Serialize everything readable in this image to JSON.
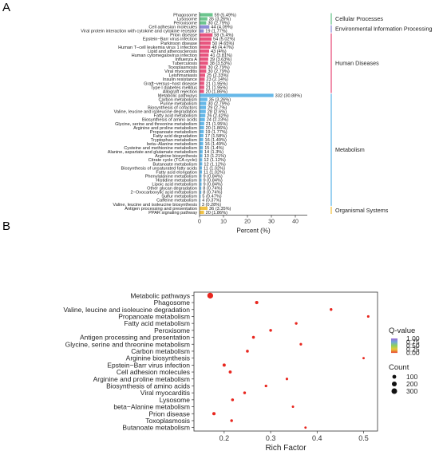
{
  "panels": {
    "a": "A",
    "b": "B"
  },
  "chart_data": [
    {
      "type": "bar",
      "orientation": "horizontal",
      "xlabel": "Percent (%)",
      "xlim": [
        0,
        45
      ],
      "xticks": [
        0,
        10,
        20,
        30,
        40
      ],
      "grid": false,
      "bars": [
        {
          "label": "Phagosome",
          "value": 5.49,
          "text": "59 (5.49%)",
          "group": 0
        },
        {
          "label": "Lysosome",
          "value": 3.26,
          "text": "35 (3.26%)",
          "group": 0
        },
        {
          "label": "Peroxisome",
          "value": 2.79,
          "text": "30 (2.79%)",
          "group": 0
        },
        {
          "label": "Cell adhesion molecules",
          "value": 4.09,
          "text": "44 (4.09%)",
          "group": 1
        },
        {
          "label": "Viral protein interaction with cytokine and cytokine receptor",
          "value": 1.77,
          "text": "19 (1.77%)",
          "group": 1
        },
        {
          "label": "Prion disease",
          "value": 5.4,
          "text": "58 (5.4%)",
          "group": 2
        },
        {
          "label": "Epstein−Barr virus infection",
          "value": 5.02,
          "text": "54 (5.02%)",
          "group": 2
        },
        {
          "label": "Parkinson disease",
          "value": 4.65,
          "text": "50 (4.65%)",
          "group": 2
        },
        {
          "label": "Human T−cell leukemia virus 1 infection",
          "value": 4.47,
          "text": "48 (4.47%)",
          "group": 2
        },
        {
          "label": "Lipid and atherosclerosis",
          "value": 4.0,
          "text": "43 (4%)",
          "group": 2
        },
        {
          "label": "Human cytomegalovirus infection",
          "value": 3.81,
          "text": "41 (3.81%)",
          "group": 2
        },
        {
          "label": "Influenza A",
          "value": 3.63,
          "text": "39 (3.63%)",
          "group": 2
        },
        {
          "label": "Tuberculosis",
          "value": 3.53,
          "text": "38 (3.53%)",
          "group": 2
        },
        {
          "label": "Toxoplasmosis",
          "value": 2.79,
          "text": "30 (2.79%)",
          "group": 2
        },
        {
          "label": "Viral myocarditis",
          "value": 2.79,
          "text": "30 (2.79%)",
          "group": 2
        },
        {
          "label": "Leishmaniasis",
          "value": 2.33,
          "text": "25 (2.33%)",
          "group": 2
        },
        {
          "label": "Insulin resistance",
          "value": 2.14,
          "text": "23 (2.14%)",
          "group": 2
        },
        {
          "label": "Graft−versus−host disease",
          "value": 1.95,
          "text": "21 (1.95%)",
          "group": 2
        },
        {
          "label": "Type I diabetes mellitus",
          "value": 1.95,
          "text": "21 (1.95%)",
          "group": 2
        },
        {
          "label": "Allograft rejection",
          "value": 1.86,
          "text": "20 (1.86%)",
          "group": 2
        },
        {
          "label": "Metabolic pathways",
          "value": 30.88,
          "text": "332 (30.88%)",
          "group": 3
        },
        {
          "label": "Carbon metabolism",
          "value": 3.26,
          "text": "35 (3.26%)",
          "group": 3
        },
        {
          "label": "Purine metabolism",
          "value": 2.79,
          "text": "30 (2.79%)",
          "group": 3
        },
        {
          "label": "Biosynthesis of cofactors",
          "value": 2.7,
          "text": "29 (2.7%)",
          "group": 3
        },
        {
          "label": "Valine, leucine and isoleucine degradation",
          "value": 2.6,
          "text": "28 (2.6%)",
          "group": 3
        },
        {
          "label": "Fatty acid metabolism",
          "value": 2.42,
          "text": "26 (2.42%)",
          "group": 3
        },
        {
          "label": "Biosynthesis of amino acids",
          "value": 2.23,
          "text": "24 (2.23%)",
          "group": 3
        },
        {
          "label": "Glycine, serine and threonine metabolism",
          "value": 1.95,
          "text": "21 (1.95%)",
          "group": 3
        },
        {
          "label": "Arginine and proline metabolism",
          "value": 1.86,
          "text": "20 (1.86%)",
          "group": 3
        },
        {
          "label": "Propanoate metabolism",
          "value": 1.77,
          "text": "19 (1.77%)",
          "group": 3
        },
        {
          "label": "Fatty acid degradation",
          "value": 1.58,
          "text": "17 (1.58%)",
          "group": 3
        },
        {
          "label": "Tryptophan metabolism",
          "value": 1.49,
          "text": "16 (1.49%)",
          "group": 3
        },
        {
          "label": "beta−Alanine metabolism",
          "value": 1.49,
          "text": "16 (1.49%)",
          "group": 3
        },
        {
          "label": "Cysteine and methionine metabolism",
          "value": 1.4,
          "text": "15 (1.4%)",
          "group": 3
        },
        {
          "label": "Alanine, aspartate and glutamate metabolism",
          "value": 1.3,
          "text": "14 (1.3%)",
          "group": 3
        },
        {
          "label": "Arginine biosynthesis",
          "value": 1.21,
          "text": "13 (1.21%)",
          "group": 3
        },
        {
          "label": "Citrate cycle (TCA cycle)",
          "value": 1.12,
          "text": "12 (1.12%)",
          "group": 3
        },
        {
          "label": "Butanoate metabolism",
          "value": 1.12,
          "text": "12 (1.12%)",
          "group": 3
        },
        {
          "label": "Biosynthesis of unsaturated fatty acids",
          "value": 1.02,
          "text": "11 (1.02%)",
          "group": 3
        },
        {
          "label": "Fatty acid elongation",
          "value": 1.02,
          "text": "11 (1.02%)",
          "group": 3
        },
        {
          "label": "Phenylalanine metabolism",
          "value": 0.84,
          "text": "9 (0.84%)",
          "group": 3
        },
        {
          "label": "Histidine metabolism",
          "value": 0.84,
          "text": "9 (0.84%)",
          "group": 3
        },
        {
          "label": "Lipoic acid metabolism",
          "value": 0.84,
          "text": "9 (0.84%)",
          "group": 3
        },
        {
          "label": "Other glycan degradation",
          "value": 0.74,
          "text": "8 (0.74%)",
          "group": 3
        },
        {
          "label": "2−Oxocarboxylic acid metabolism",
          "value": 0.74,
          "text": "8 (0.74%)",
          "group": 3
        },
        {
          "label": "Sulfur metabolism",
          "value": 0.47,
          "text": "5 (0.47%)",
          "group": 3
        },
        {
          "label": "Caffeine metabolism",
          "value": 0.37,
          "text": "4 (0.37%)",
          "group": 3
        },
        {
          "label": "Valine, leucine and isoleucine biosynthesis",
          "value": 0.28,
          "text": "3 (0.28%)",
          "group": 3
        },
        {
          "label": "Antigen processing and presentation",
          "value": 3.35,
          "text": "36 (3.35%)",
          "group": 4
        },
        {
          "label": "PPAR signaling pathway",
          "value": 1.86,
          "text": "20 (1.86%)",
          "group": 4
        }
      ],
      "groups": [
        {
          "name": "Cellular Processes",
          "color": "#6cc58e"
        },
        {
          "name": "Environmental Information Processing",
          "color": "#8f8fd6"
        },
        {
          "name": "Human Diseases",
          "color": "#e8557f"
        },
        {
          "name": "Metabolism",
          "color": "#66b8e8"
        },
        {
          "name": "Organismal Systems",
          "color": "#f0c246"
        }
      ]
    },
    {
      "type": "scatter",
      "xlabel": "Rich Factor",
      "xlim": [
        0.135,
        0.53
      ],
      "xticks": [
        0.2,
        0.3,
        0.4,
        0.5
      ],
      "grid": false,
      "categories": [
        "Metabolic pathways",
        "Phagosome",
        "Valine, leucine and isoleucine degradation",
        "Propanoate metabolism",
        "Fatty acid metabolism",
        "Peroxisome",
        "Antigen processing and presentation",
        "Glycine, serine and threonine metabolism",
        "Carbon metabolism",
        "Arginine biosynthesis",
        "Epstein−Barr virus infection",
        "Cell adhesion molecules",
        "Arginine and proline metabolism",
        "Biosynthesis of amino acids",
        "Viral myocarditis",
        "Lysosome",
        "beta−Alanine metabolism",
        "Prion disease",
        "Toxoplasmosis",
        "Butanoate metabolism"
      ],
      "points": [
        {
          "x": 0.17,
          "count": 332,
          "q": 0.0
        },
        {
          "x": 0.27,
          "count": 59,
          "q": 0.0
        },
        {
          "x": 0.43,
          "count": 28,
          "q": 0.0
        },
        {
          "x": 0.51,
          "count": 19,
          "q": 0.0
        },
        {
          "x": 0.355,
          "count": 26,
          "q": 0.0
        },
        {
          "x": 0.3,
          "count": 30,
          "q": 0.0
        },
        {
          "x": 0.263,
          "count": 36,
          "q": 0.0
        },
        {
          "x": 0.365,
          "count": 21,
          "q": 0.0
        },
        {
          "x": 0.25,
          "count": 35,
          "q": 0.0
        },
        {
          "x": 0.5,
          "count": 13,
          "q": 0.0
        },
        {
          "x": 0.2,
          "count": 54,
          "q": 0.0
        },
        {
          "x": 0.213,
          "count": 44,
          "q": 0.0
        },
        {
          "x": 0.335,
          "count": 20,
          "q": 0.0
        },
        {
          "x": 0.29,
          "count": 24,
          "q": 0.0
        },
        {
          "x": 0.244,
          "count": 30,
          "q": 0.0
        },
        {
          "x": 0.218,
          "count": 35,
          "q": 0.0
        },
        {
          "x": 0.348,
          "count": 16,
          "q": 0.0
        },
        {
          "x": 0.178,
          "count": 58,
          "q": 0.0
        },
        {
          "x": 0.216,
          "count": 30,
          "q": 0.0
        },
        {
          "x": 0.375,
          "count": 12,
          "q": 0.0
        }
      ],
      "color_legend": {
        "title": "Q-value",
        "ticks": [
          "1.00",
          "0.75",
          "0.50",
          "0.25",
          "0.00"
        ],
        "range": [
          0,
          1
        ],
        "colors": [
          "#9b6bd6",
          "#6fa8dc",
          "#8fd05c",
          "#e8c93a",
          "#e8452f"
        ]
      },
      "size_legend": {
        "title": "Count",
        "ticks": [
          "100",
          "200",
          "300"
        ],
        "values": [
          100,
          200,
          300
        ]
      }
    }
  ]
}
